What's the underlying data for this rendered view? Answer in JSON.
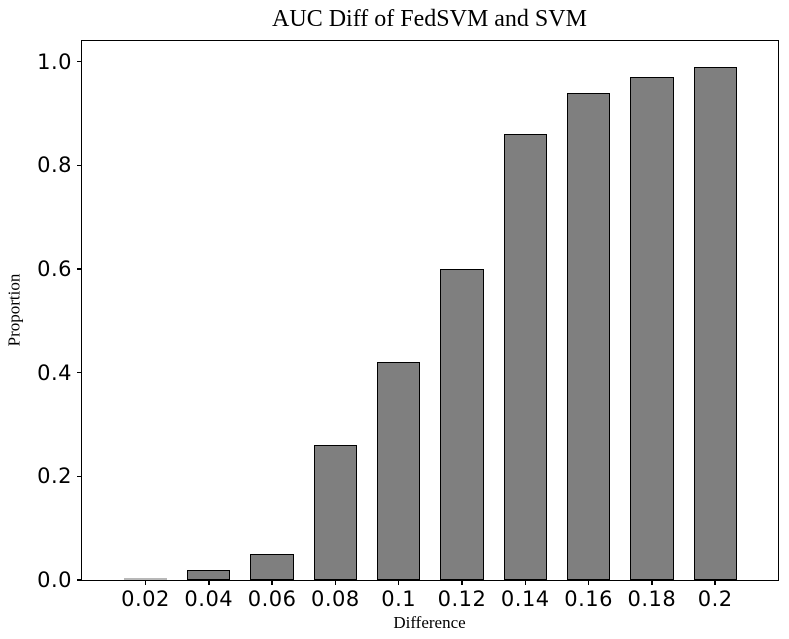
{
  "chart_data": {
    "type": "bar",
    "title": "AUC Diff of FedSVM and SVM",
    "xlabel": "Difference",
    "ylabel": "Proportion",
    "categories": [
      "0.02",
      "0.04",
      "0.06",
      "0.08",
      "0.1",
      "0.12",
      "0.14",
      "0.16",
      "0.18",
      "0.2"
    ],
    "values": [
      0.002,
      0.02,
      0.05,
      0.26,
      0.42,
      0.6,
      0.86,
      0.94,
      0.97,
      0.99
    ],
    "yticks": [
      "0.0",
      "0.2",
      "0.4",
      "0.6",
      "0.8",
      "1.0"
    ],
    "ylim": [
      0,
      1.04
    ],
    "grid": false,
    "legend": false,
    "bar_fill_color": "#7f7f7f",
    "bar_tiny_fill_color": "#b8b8b8",
    "bar_edge_color": "#000000",
    "background_color": "#ffffff"
  }
}
